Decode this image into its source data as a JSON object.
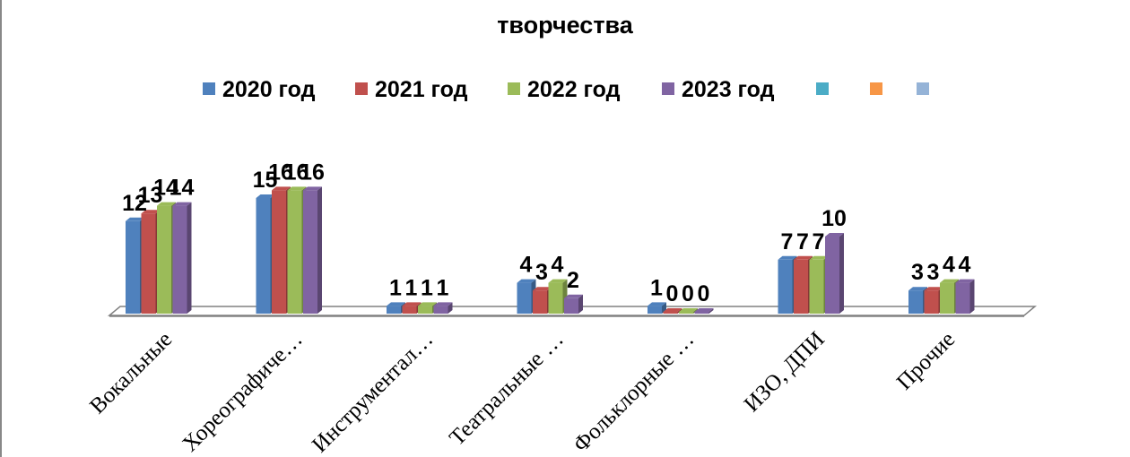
{
  "chart_data": {
    "type": "bar",
    "title_line1": "",
    "title_line2": "творчества",
    "categories": [
      "Вокальные",
      "Хореографиче…",
      "Инструментал…",
      "Театральные …",
      "Фольклорные …",
      "ИЗО, ДПИ",
      "Прочие"
    ],
    "series": [
      {
        "name": "2020 год",
        "color": "#4F81BD",
        "values": [
          12,
          15,
          1,
          4,
          1,
          7,
          3
        ]
      },
      {
        "name": "2021 год",
        "color": "#C0504D",
        "values": [
          13,
          16,
          1,
          3,
          0,
          7,
          3
        ]
      },
      {
        "name": "2022 год",
        "color": "#9BBB59",
        "values": [
          14,
          16,
          1,
          4,
          0,
          7,
          4
        ]
      },
      {
        "name": "2023 год",
        "color": "#8064A2",
        "values": [
          14,
          16,
          1,
          2,
          0,
          10,
          4
        ]
      }
    ],
    "empty_legend_colors": [
      "#4BACC6",
      "#F79646",
      "#95B3D7"
    ],
    "ylim": [
      0,
      16
    ],
    "grid": false,
    "legend_position": "top",
    "data_labels": true
  }
}
